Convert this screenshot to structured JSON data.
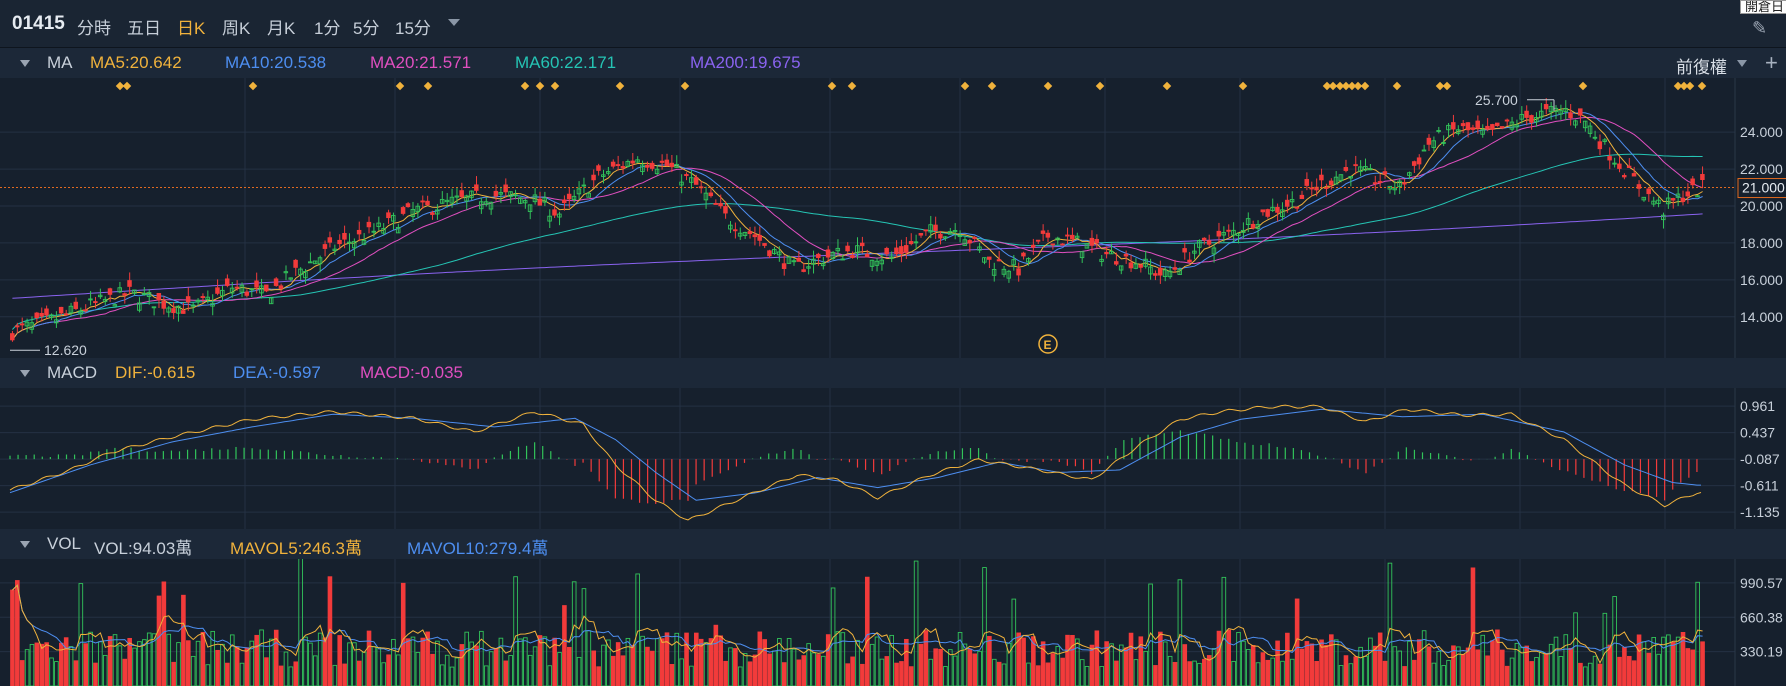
{
  "toolbar": {
    "ticker": "01415",
    "items": [
      "分時",
      "五日",
      "日K",
      "周K",
      "月K",
      "1分",
      "5分",
      "15分"
    ],
    "active": "日K",
    "tooltip": "開倉日"
  },
  "ma_panel": {
    "label": "MA",
    "values": [
      "MA5:20.642",
      "MA10:20.538",
      "MA20:21.571",
      "MA60:22.171",
      "MA200:19.675"
    ],
    "adjust": "前復權"
  },
  "macd_panel": {
    "label": "MACD",
    "values": [
      "DIF:-0.615",
      "DEA:-0.597",
      "MACD:-0.035"
    ]
  },
  "vol_panel": {
    "label": "VOL",
    "values": [
      "VOL:94.03萬",
      "MAVOL5:246.3萬",
      "MAVOL10:279.4萬"
    ]
  },
  "colors": {
    "up": "#32c35a",
    "down": "#f23b3b",
    "ma5": "#f0b23c",
    "ma10": "#4d8ef0",
    "ma20": "#e04fc0",
    "ma60": "#25c4b4",
    "ma200": "#8a63f0",
    "dif": "#f0b23c",
    "dea": "#4d8ef0",
    "macd": "#e04fc0",
    "vol5": "#f0b23c",
    "vol10": "#4d8ef0"
  },
  "chart_data": [
    {
      "type": "candlestick",
      "title": "MA",
      "ylim": [
        12.2,
        26.5
      ],
      "yticks": [
        "24.000",
        "22.000",
        "20.000",
        "18.000",
        "16.000",
        "14.000"
      ],
      "ytick_values": [
        24,
        22,
        20,
        18,
        16,
        14
      ],
      "current_price_label": "21.000",
      "current_price": 21.0,
      "high_label": "25.700",
      "high_value": 25.7,
      "low_label": "12.620",
      "low_value": 12.62,
      "event_marker": "E",
      "close_path": [
        [
          0,
          13.2
        ],
        [
          8,
          13.8
        ],
        [
          16,
          14.6
        ],
        [
          24,
          15.3
        ],
        [
          30,
          14.8
        ],
        [
          37,
          14.4
        ],
        [
          45,
          15.6
        ],
        [
          52,
          15.2
        ],
        [
          58,
          16.4
        ],
        [
          66,
          17.8
        ],
        [
          74,
          18.6
        ],
        [
          82,
          19.7
        ],
        [
          90,
          20.2
        ],
        [
          98,
          20.6
        ],
        [
          106,
          20.4
        ],
        [
          112,
          19.6
        ],
        [
          120,
          21.6
        ],
        [
          128,
          22.6
        ],
        [
          134,
          22.2
        ],
        [
          140,
          21.1
        ],
        [
          146,
          19.4
        ],
        [
          152,
          18.4
        ],
        [
          160,
          16.6
        ],
        [
          166,
          17.2
        ],
        [
          172,
          17.6
        ],
        [
          180,
          17.2
        ],
        [
          188,
          18.6
        ],
        [
          194,
          18.8
        ],
        [
          200,
          17.0
        ],
        [
          206,
          16.6
        ],
        [
          212,
          18.4
        ],
        [
          218,
          18.0
        ],
        [
          224,
          17.4
        ],
        [
          230,
          17.0
        ],
        [
          236,
          16.2
        ],
        [
          242,
          17.6
        ],
        [
          250,
          18.6
        ],
        [
          256,
          19.6
        ],
        [
          262,
          20.2
        ],
        [
          268,
          21.2
        ],
        [
          274,
          22.0
        ],
        [
          280,
          21.4
        ],
        [
          284,
          21.0
        ],
        [
          290,
          23.4
        ],
        [
          296,
          24.2
        ],
        [
          302,
          23.8
        ],
        [
          310,
          24.8
        ],
        [
          318,
          25.2
        ],
        [
          322,
          24.6
        ],
        [
          326,
          23.2
        ],
        [
          330,
          22.0
        ],
        [
          334,
          20.8
        ],
        [
          338,
          19.8
        ],
        [
          342,
          20.6
        ],
        [
          346,
          21.0
        ]
      ],
      "markers_count": 40
    },
    {
      "type": "line",
      "title": "MACD",
      "series_names": [
        "DIF",
        "DEA",
        "MACD"
      ],
      "yticks": [
        "0.961",
        "0.437",
        "-0.087",
        "-0.611",
        "-1.135"
      ],
      "ytick_values": [
        0.961,
        0.437,
        -0.087,
        -0.611,
        -1.135
      ],
      "ylim": [
        -1.35,
        1.2
      ],
      "dif_path": [
        [
          0,
          -0.7
        ],
        [
          15,
          -0.3
        ],
        [
          25,
          0.05
        ],
        [
          40,
          0.35
        ],
        [
          60,
          0.7
        ],
        [
          80,
          0.85
        ],
        [
          100,
          0.72
        ],
        [
          115,
          0.45
        ],
        [
          130,
          0.85
        ],
        [
          142,
          0.6
        ],
        [
          150,
          -0.2
        ],
        [
          160,
          -0.9
        ],
        [
          168,
          -1.3
        ],
        [
          180,
          -0.9
        ],
        [
          195,
          -0.4
        ],
        [
          205,
          -0.5
        ],
        [
          215,
          -0.85
        ],
        [
          228,
          -0.4
        ],
        [
          240,
          -0.1
        ],
        [
          255,
          -0.3
        ],
        [
          268,
          -0.5
        ],
        [
          280,
          0.2
        ],
        [
          290,
          0.7
        ],
        [
          300,
          0.85
        ],
        [
          312,
          0.95
        ],
        [
          325,
          0.95
        ],
        [
          336,
          0.65
        ],
        [
          346,
          0.9
        ],
        [
          360,
          0.78
        ],
        [
          372,
          0.8
        ],
        [
          385,
          0.3
        ],
        [
          400,
          -0.6
        ],
        [
          410,
          -1.0
        ],
        [
          418,
          -0.75
        ]
      ],
      "dea_path": [
        [
          0,
          -0.75
        ],
        [
          20,
          -0.2
        ],
        [
          40,
          0.25
        ],
        [
          60,
          0.55
        ],
        [
          80,
          0.8
        ],
        [
          100,
          0.72
        ],
        [
          120,
          0.55
        ],
        [
          140,
          0.72
        ],
        [
          150,
          0.3
        ],
        [
          160,
          -0.35
        ],
        [
          170,
          -0.9
        ],
        [
          185,
          -0.75
        ],
        [
          200,
          -0.45
        ],
        [
          215,
          -0.65
        ],
        [
          230,
          -0.45
        ],
        [
          245,
          -0.15
        ],
        [
          260,
          -0.35
        ],
        [
          275,
          -0.3
        ],
        [
          290,
          0.35
        ],
        [
          305,
          0.7
        ],
        [
          325,
          0.9
        ],
        [
          345,
          0.75
        ],
        [
          365,
          0.8
        ],
        [
          385,
          0.45
        ],
        [
          400,
          -0.2
        ],
        [
          412,
          -0.55
        ],
        [
          418,
          -0.6
        ]
      ]
    },
    {
      "type": "bar",
      "title": "VOL",
      "series_names": [
        "VOL",
        "MAVOL5",
        "MAVOL10"
      ],
      "yticks": [
        "990.57",
        "660.38",
        "330.19"
      ],
      "ytick_values": [
        990.57,
        660.38,
        330.19
      ],
      "ylim": [
        0,
        1220
      ]
    }
  ]
}
